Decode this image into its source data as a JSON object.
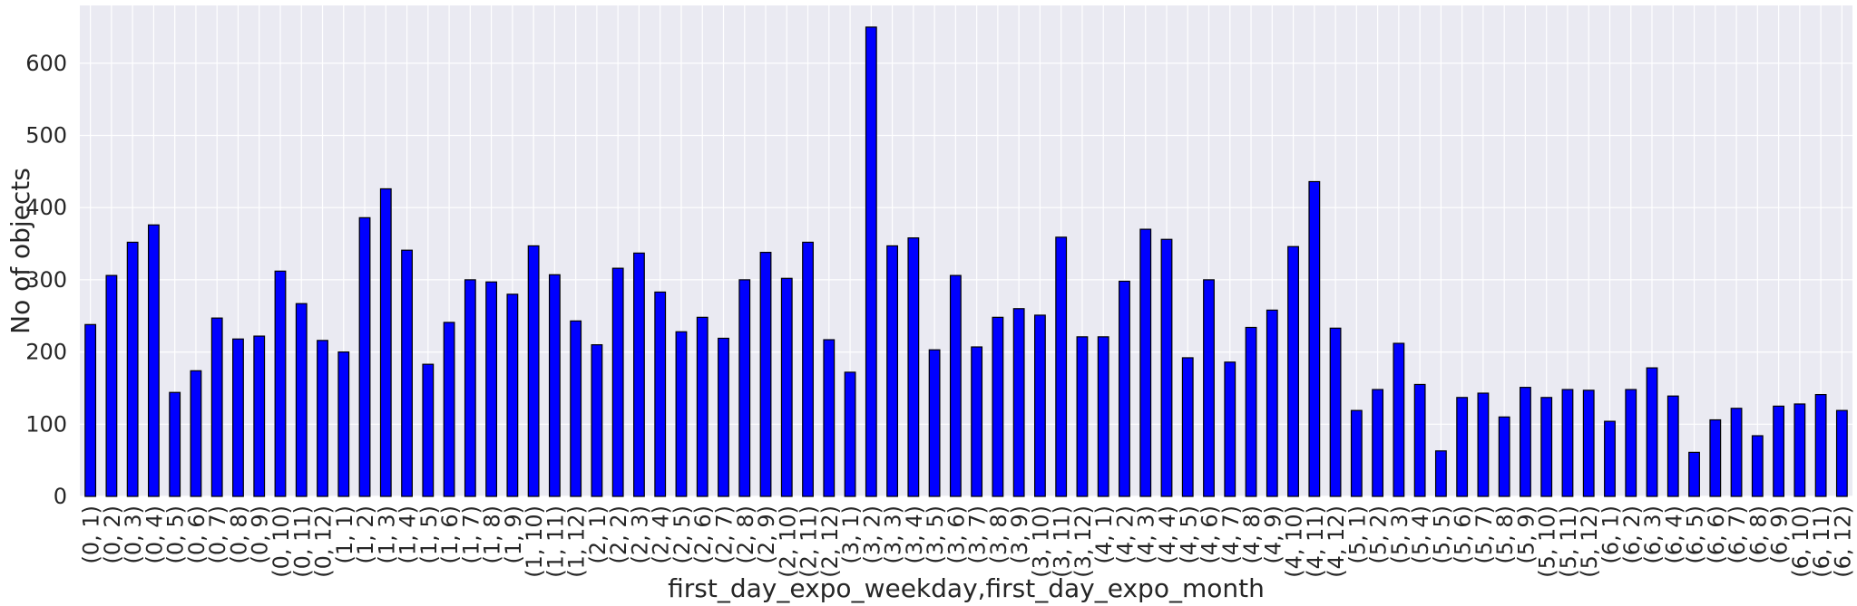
{
  "chart_data": {
    "type": "bar",
    "title": "",
    "xlabel": "first_day_expo_weekday,first_day_expo_month",
    "ylabel": "No of objects",
    "ylim": [
      0,
      680
    ],
    "yticks": [
      0,
      100,
      200,
      300,
      400,
      500,
      600
    ],
    "grid": true,
    "legend": "none",
    "colors": {
      "bar": "#0000ff",
      "edge": "#000000",
      "background": "#eaeaf2",
      "grid": "#ffffff",
      "text": "#262626"
    },
    "categories": [
      "(0, 1)",
      "(0, 2)",
      "(0, 3)",
      "(0, 4)",
      "(0, 5)",
      "(0, 6)",
      "(0, 7)",
      "(0, 8)",
      "(0, 9)",
      "(0, 10)",
      "(0, 11)",
      "(0, 12)",
      "(1, 1)",
      "(1, 2)",
      "(1, 3)",
      "(1, 4)",
      "(1, 5)",
      "(1, 6)",
      "(1, 7)",
      "(1, 8)",
      "(1, 9)",
      "(1, 10)",
      "(1, 11)",
      "(1, 12)",
      "(2, 1)",
      "(2, 2)",
      "(2, 3)",
      "(2, 4)",
      "(2, 5)",
      "(2, 6)",
      "(2, 7)",
      "(2, 8)",
      "(2, 9)",
      "(2, 10)",
      "(2, 11)",
      "(2, 12)",
      "(3, 1)",
      "(3, 2)",
      "(3, 3)",
      "(3, 4)",
      "(3, 5)",
      "(3, 6)",
      "(3, 7)",
      "(3, 8)",
      "(3, 9)",
      "(3, 10)",
      "(3, 11)",
      "(3, 12)",
      "(4, 1)",
      "(4, 2)",
      "(4, 3)",
      "(4, 4)",
      "(4, 5)",
      "(4, 6)",
      "(4, 7)",
      "(4, 8)",
      "(4, 9)",
      "(4, 10)",
      "(4, 11)",
      "(4, 12)",
      "(5, 1)",
      "(5, 2)",
      "(5, 3)",
      "(5, 4)",
      "(5, 5)",
      "(5, 6)",
      "(5, 7)",
      "(5, 8)",
      "(5, 9)",
      "(5, 10)",
      "(5, 11)",
      "(5, 12)",
      "(6, 1)",
      "(6, 2)",
      "(6, 3)",
      "(6, 4)",
      "(6, 5)",
      "(6, 6)",
      "(6, 7)",
      "(6, 8)",
      "(6, 9)",
      "(6, 10)",
      "(6, 11)",
      "(6, 12)"
    ],
    "values": [
      238,
      306,
      352,
      376,
      144,
      174,
      247,
      218,
      222,
      312,
      267,
      216,
      200,
      386,
      426,
      341,
      183,
      241,
      300,
      297,
      280,
      347,
      307,
      243,
      210,
      316,
      337,
      283,
      228,
      248,
      219,
      300,
      338,
      302,
      352,
      217,
      172,
      650,
      347,
      358,
      203,
      306,
      207,
      248,
      260,
      251,
      359,
      221,
      221,
      298,
      370,
      356,
      192,
      300,
      186,
      234,
      258,
      346,
      436,
      233,
      119,
      148,
      212,
      155,
      63,
      137,
      143,
      110,
      151,
      137,
      148,
      147,
      104,
      148,
      178,
      139,
      61,
      106,
      122,
      84,
      125,
      128,
      141,
      119
    ]
  }
}
